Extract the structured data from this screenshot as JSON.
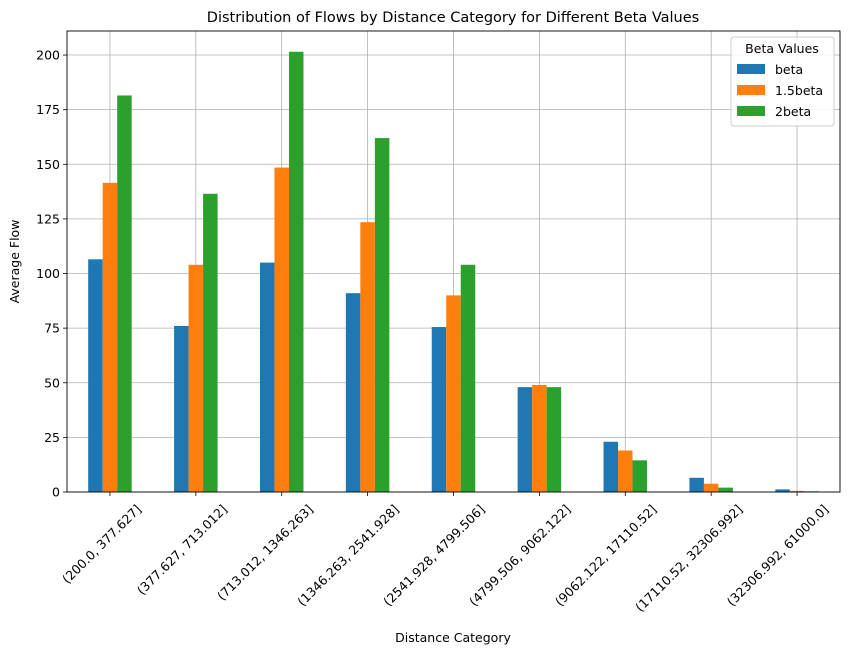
{
  "chart_data": {
    "type": "bar",
    "title": "Distribution of Flows by Distance Category for Different Beta Values",
    "xlabel": "Distance Category",
    "ylabel": "Average Flow",
    "ylim": [
      0,
      211
    ],
    "yticks": [
      0,
      25,
      50,
      75,
      100,
      125,
      150,
      175,
      200
    ],
    "grid": true,
    "legend": {
      "title": "Beta Values",
      "placement": "top-right"
    },
    "categories": [
      "(200.0, 377.627]",
      "(377.627, 713.012]",
      "(713.012, 1346.263]",
      "(1346.263, 2541.928]",
      "(2541.928, 4799.506]",
      "(4799.506, 9062.122]",
      "(9062.122, 17110.52]",
      "(17110.52, 32306.992]",
      "(32306.992, 61000.0]"
    ],
    "series": [
      {
        "name": "beta",
        "color": "#1f77b4",
        "values": [
          106.5,
          76,
          105,
          91,
          75.5,
          48,
          23,
          6.5,
          1.2
        ]
      },
      {
        "name": "1.5beta",
        "color": "#ff7f0e",
        "values": [
          141.5,
          104,
          148.5,
          123.5,
          90,
          49,
          19,
          3.8,
          0.5
        ]
      },
      {
        "name": "2beta",
        "color": "#2ca02c",
        "values": [
          181.5,
          136.5,
          201.5,
          162,
          104,
          48,
          14.5,
          2,
          0.3
        ]
      }
    ]
  }
}
